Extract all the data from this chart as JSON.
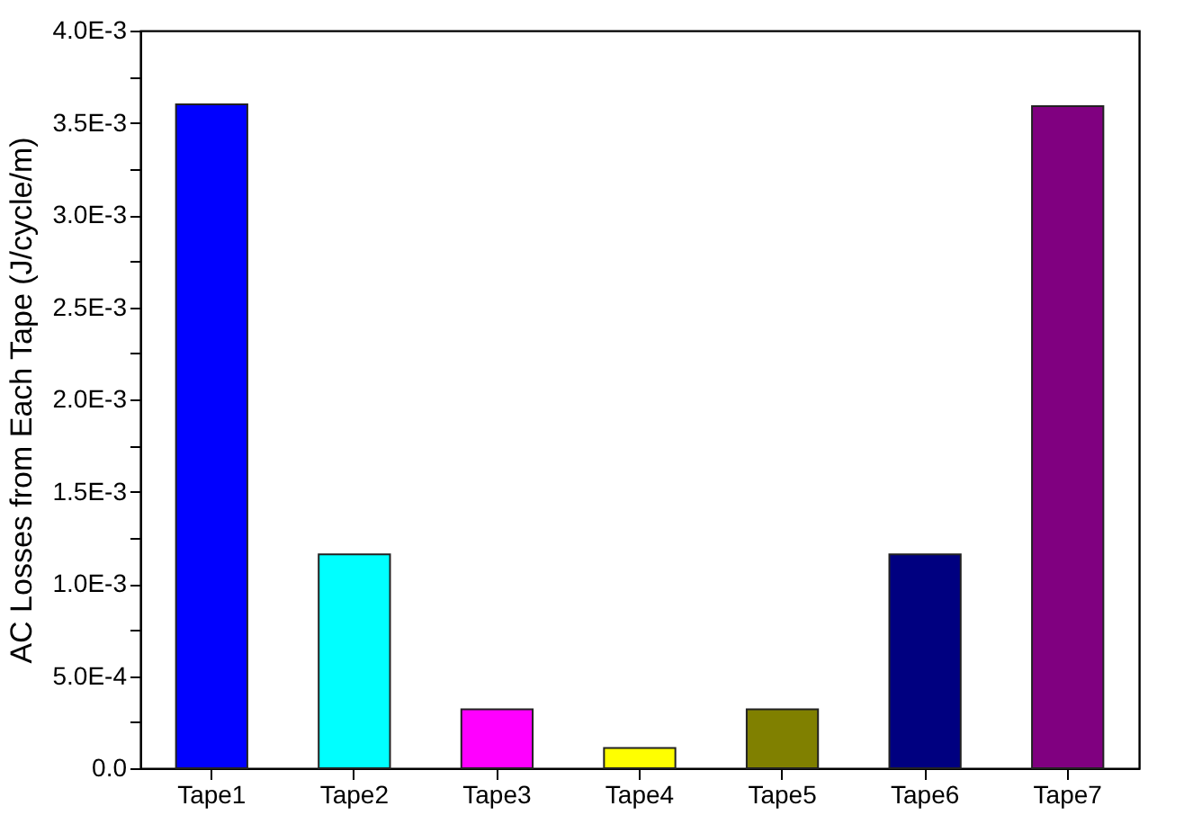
{
  "chart_data": {
    "type": "bar",
    "ylabel": "AC Losses from Each Tape (J/cycle/m)",
    "categories": [
      "Tape1",
      "Tape2",
      "Tape3",
      "Tape4",
      "Tape5",
      "Tape6",
      "Tape7"
    ],
    "values": [
      0.0036,
      0.00116,
      0.00032,
      0.00011,
      0.00032,
      0.00116,
      0.00359
    ],
    "colors": [
      "#0000ff",
      "#00ffff",
      "#ff00ff",
      "#ffff00",
      "#808000",
      "#000080",
      "#800080"
    ],
    "ylim": [
      0,
      0.004
    ],
    "yticks": [
      {
        "value": 0,
        "label": "0.0"
      },
      {
        "value": 0.00025,
        "label": null
      },
      {
        "value": 0.0005,
        "label": "5.0E-4"
      },
      {
        "value": 0.00075,
        "label": null
      },
      {
        "value": 0.001,
        "label": "1.0E-3"
      },
      {
        "value": 0.00125,
        "label": null
      },
      {
        "value": 0.0015,
        "label": "1.5E-3"
      },
      {
        "value": 0.00175,
        "label": null
      },
      {
        "value": 0.002,
        "label": "2.0E-3"
      },
      {
        "value": 0.00225,
        "label": null
      },
      {
        "value": 0.0025,
        "label": "2.5E-3"
      },
      {
        "value": 0.00275,
        "label": null
      },
      {
        "value": 0.003,
        "label": "3.0E-3"
      },
      {
        "value": 0.00325,
        "label": null
      },
      {
        "value": 0.0035,
        "label": "3.5E-3"
      },
      {
        "value": 0.00375,
        "label": null
      },
      {
        "value": 0.004,
        "label": "4.0E-3"
      }
    ],
    "grid": false,
    "legend": false
  }
}
